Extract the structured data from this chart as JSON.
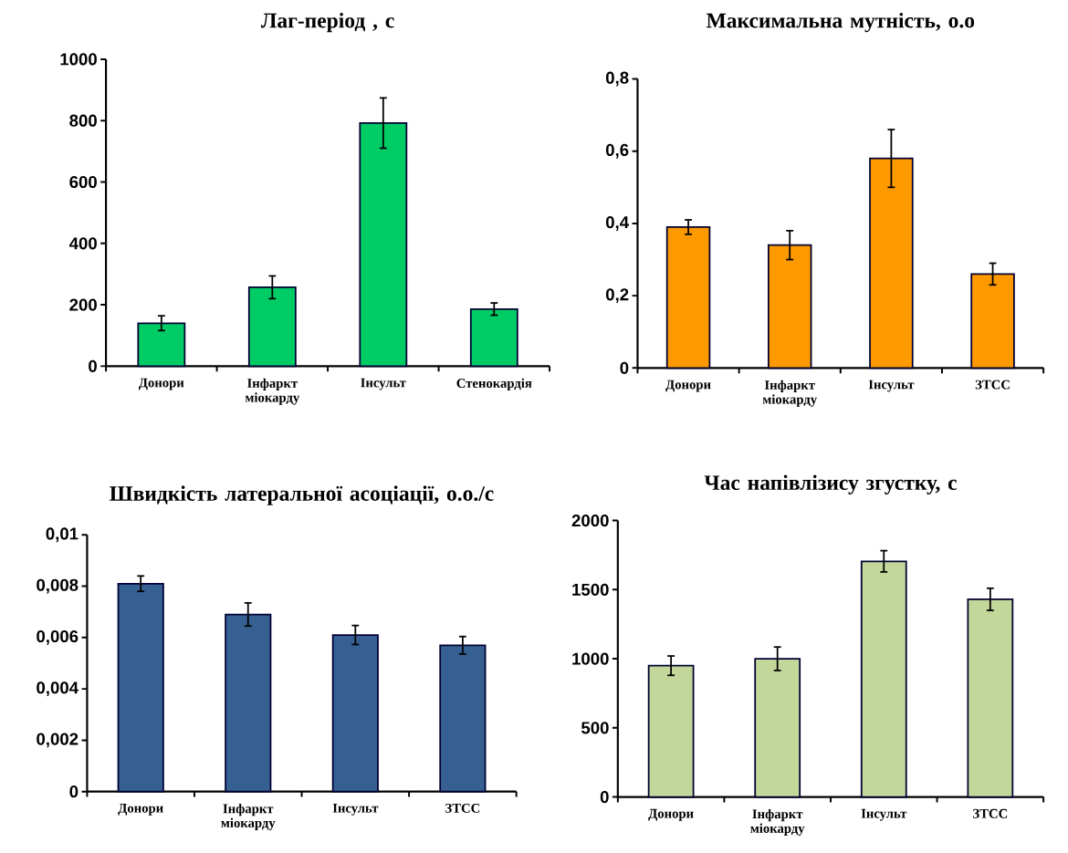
{
  "chart_data": [
    {
      "type": "bar",
      "title": "Лаг-період , с",
      "categories": [
        "Донори",
        "Інфаркт міокарду",
        "Інсульт",
        "Стенокардія"
      ],
      "values": [
        140,
        257,
        792,
        186
      ],
      "errors": [
        24,
        37,
        82,
        20
      ],
      "color": "#00cc66",
      "ylim": [
        0,
        1000
      ],
      "yticks": [
        0,
        200,
        400,
        600,
        800,
        1000
      ]
    },
    {
      "type": "bar",
      "title": "Максимальна мутність, о.о",
      "categories": [
        "Донори",
        "Інфаркт міокарду",
        "Інсульт",
        "ЗТСС"
      ],
      "values": [
        0.39,
        0.34,
        0.58,
        0.26
      ],
      "errors": [
        0.02,
        0.04,
        0.08,
        0.03
      ],
      "color": "#ff9900",
      "ylim": [
        0,
        0.8
      ],
      "yticks": [
        0,
        {
          "value": 0.2,
          "label": "0,2"
        },
        {
          "value": 0.4,
          "label": "0,4"
        },
        {
          "value": 0.6,
          "label": "0,6"
        },
        {
          "value": 0.8,
          "label": "0,8"
        }
      ]
    },
    {
      "type": "bar",
      "title": "Швидкість латеральної асоціації, о.о./с",
      "categories": [
        "Донори",
        "Інфаркт міокарду",
        "Інсульт",
        "ЗТСС"
      ],
      "values": [
        0.0081,
        0.0069,
        0.0061,
        0.0057
      ],
      "errors": [
        0.0003,
        0.00045,
        0.00037,
        0.00034
      ],
      "color": "#376092",
      "ylim": [
        0,
        0.01
      ],
      "yticks": [
        0,
        {
          "value": 0.002,
          "label": "0,002"
        },
        {
          "value": 0.004,
          "label": "0,004"
        },
        {
          "value": 0.006,
          "label": "0,006"
        },
        {
          "value": 0.008,
          "label": "0,008"
        },
        {
          "value": 0.01,
          "label": "0,01"
        }
      ]
    },
    {
      "type": "bar",
      "title": "Час напівлізису згустку, с",
      "categories": [
        "Донори",
        "Інфаркт міокарду",
        "Інсульт",
        "ЗТСС"
      ],
      "values": [
        950,
        1000,
        1705,
        1430
      ],
      "errors": [
        70,
        85,
        77,
        80
      ],
      "color": "#c4d79b",
      "ylim": [
        0,
        2000
      ],
      "yticks": [
        0,
        500,
        1000,
        1500,
        2000
      ]
    }
  ]
}
